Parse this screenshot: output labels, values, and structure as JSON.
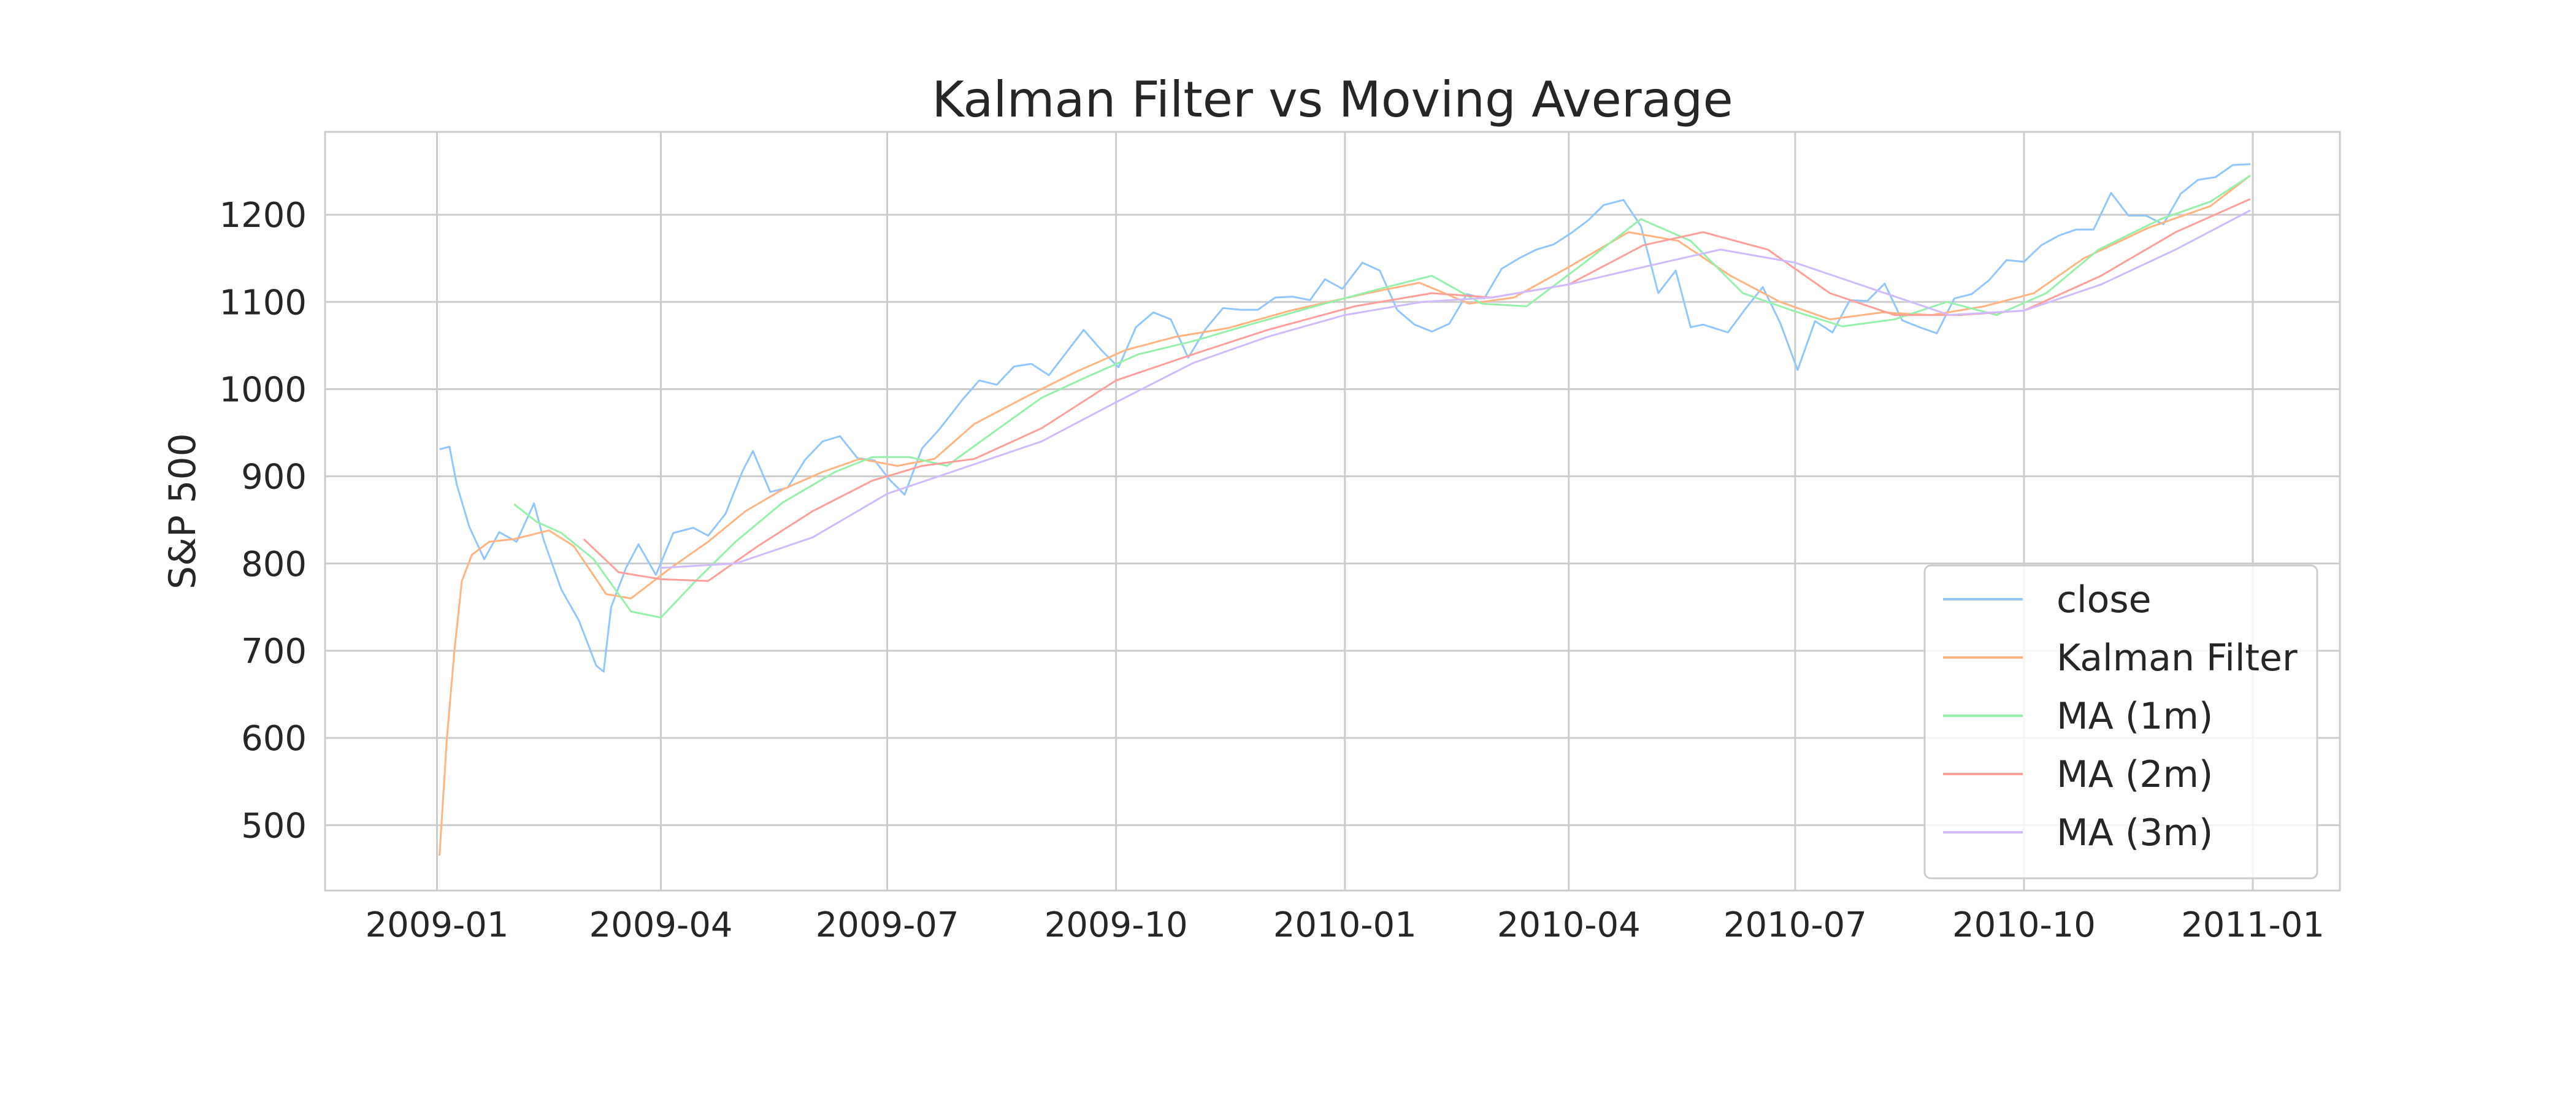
{
  "chart_data": {
    "type": "line",
    "title": "Kalman Filter vs Moving Average",
    "xlabel": "",
    "ylabel": "S&P 500",
    "x_ticks": [
      "2009-01",
      "2009-04",
      "2009-07",
      "2009-10",
      "2010-01",
      "2010-04",
      "2010-07",
      "2010-10",
      "2011-01"
    ],
    "x_tick_dates": [
      "2009-01-01",
      "2009-04-01",
      "2009-07-01",
      "2009-10-01",
      "2010-01-01",
      "2010-04-01",
      "2010-07-01",
      "2010-10-01",
      "2011-01-01"
    ],
    "xlim": [
      "2008-11-17",
      "2011-02-05"
    ],
    "y_ticks": [
      500,
      600,
      700,
      800,
      900,
      1000,
      1100,
      1200
    ],
    "ylim": [
      425,
      1295
    ],
    "grid": true,
    "legend_position": "lower-right",
    "series": [
      {
        "name": "close",
        "color": "#92c6ff",
        "points": [
          [
            "2009-01-02",
            931
          ],
          [
            "2009-01-06",
            934
          ],
          [
            "2009-01-09",
            890
          ],
          [
            "2009-01-14",
            842
          ],
          [
            "2009-01-20",
            805
          ],
          [
            "2009-01-26",
            836
          ],
          [
            "2009-02-02",
            825
          ],
          [
            "2009-02-09",
            869
          ],
          [
            "2009-02-13",
            826
          ],
          [
            "2009-02-20",
            770
          ],
          [
            "2009-02-27",
            735
          ],
          [
            "2009-03-06",
            683
          ],
          [
            "2009-03-09",
            676
          ],
          [
            "2009-03-12",
            750
          ],
          [
            "2009-03-18",
            795
          ],
          [
            "2009-03-23",
            822
          ],
          [
            "2009-03-30",
            787
          ],
          [
            "2009-04-06",
            835
          ],
          [
            "2009-04-14",
            841
          ],
          [
            "2009-04-20",
            832
          ],
          [
            "2009-04-27",
            857
          ],
          [
            "2009-05-04",
            907
          ],
          [
            "2009-05-08",
            929
          ],
          [
            "2009-05-15",
            882
          ],
          [
            "2009-05-22",
            887
          ],
          [
            "2009-05-29",
            919
          ],
          [
            "2009-06-05",
            940
          ],
          [
            "2009-06-12",
            946
          ],
          [
            "2009-06-19",
            921
          ],
          [
            "2009-06-26",
            918
          ],
          [
            "2009-07-02",
            896
          ],
          [
            "2009-07-08",
            879
          ],
          [
            "2009-07-15",
            932
          ],
          [
            "2009-07-22",
            954
          ],
          [
            "2009-07-31",
            987
          ],
          [
            "2009-08-07",
            1010
          ],
          [
            "2009-08-14",
            1005
          ],
          [
            "2009-08-21",
            1026
          ],
          [
            "2009-08-28",
            1029
          ],
          [
            "2009-09-04",
            1016
          ],
          [
            "2009-09-11",
            1042
          ],
          [
            "2009-09-18",
            1068
          ],
          [
            "2009-09-25",
            1045
          ],
          [
            "2009-10-02",
            1025
          ],
          [
            "2009-10-09",
            1071
          ],
          [
            "2009-10-16",
            1088
          ],
          [
            "2009-10-23",
            1080
          ],
          [
            "2009-10-30",
            1036
          ],
          [
            "2009-11-06",
            1069
          ],
          [
            "2009-11-13",
            1093
          ],
          [
            "2009-11-20",
            1091
          ],
          [
            "2009-11-27",
            1091
          ],
          [
            "2009-12-04",
            1105
          ],
          [
            "2009-12-11",
            1106
          ],
          [
            "2009-12-18",
            1102
          ],
          [
            "2009-12-24",
            1126
          ],
          [
            "2009-12-31",
            1115
          ],
          [
            "2010-01-08",
            1145
          ],
          [
            "2010-01-15",
            1136
          ],
          [
            "2010-01-22",
            1091
          ],
          [
            "2010-01-29",
            1074
          ],
          [
            "2010-02-05",
            1066
          ],
          [
            "2010-02-12",
            1075
          ],
          [
            "2010-02-19",
            1109
          ],
          [
            "2010-02-26",
            1104
          ],
          [
            "2010-03-05",
            1138
          ],
          [
            "2010-03-12",
            1150
          ],
          [
            "2010-03-19",
            1160
          ],
          [
            "2010-03-26",
            1166
          ],
          [
            "2010-04-02",
            1179
          ],
          [
            "2010-04-09",
            1194
          ],
          [
            "2010-04-15",
            1211
          ],
          [
            "2010-04-23",
            1217
          ],
          [
            "2010-04-30",
            1187
          ],
          [
            "2010-05-07",
            1110
          ],
          [
            "2010-05-14",
            1136
          ],
          [
            "2010-05-20",
            1071
          ],
          [
            "2010-05-25",
            1074
          ],
          [
            "2010-06-04",
            1065
          ],
          [
            "2010-06-11",
            1092
          ],
          [
            "2010-06-18",
            1117
          ],
          [
            "2010-06-25",
            1076
          ],
          [
            "2010-07-02",
            1022
          ],
          [
            "2010-07-09",
            1078
          ],
          [
            "2010-07-16",
            1065
          ],
          [
            "2010-07-23",
            1102
          ],
          [
            "2010-07-30",
            1101
          ],
          [
            "2010-08-06",
            1121
          ],
          [
            "2010-08-13",
            1079
          ],
          [
            "2010-08-20",
            1071
          ],
          [
            "2010-08-27",
            1064
          ],
          [
            "2010-09-03",
            1104
          ],
          [
            "2010-09-10",
            1109
          ],
          [
            "2010-09-17",
            1125
          ],
          [
            "2010-09-24",
            1148
          ],
          [
            "2010-10-01",
            1146
          ],
          [
            "2010-10-08",
            1165
          ],
          [
            "2010-10-15",
            1176
          ],
          [
            "2010-10-22",
            1183
          ],
          [
            "2010-10-29",
            1183
          ],
          [
            "2010-11-05",
            1225
          ],
          [
            "2010-11-12",
            1199
          ],
          [
            "2010-11-19",
            1199
          ],
          [
            "2010-11-26",
            1189
          ],
          [
            "2010-12-03",
            1224
          ],
          [
            "2010-12-10",
            1240
          ],
          [
            "2010-12-17",
            1243
          ],
          [
            "2010-12-24",
            1257
          ],
          [
            "2010-12-31",
            1258
          ]
        ]
      },
      {
        "name": "Kalman Filter",
        "color": "#ffb482",
        "points": [
          [
            "2009-01-02",
            465
          ],
          [
            "2009-01-05",
            600
          ],
          [
            "2009-01-08",
            700
          ],
          [
            "2009-01-11",
            780
          ],
          [
            "2009-01-15",
            810
          ],
          [
            "2009-01-22",
            825
          ],
          [
            "2009-02-01",
            828
          ],
          [
            "2009-02-15",
            838
          ],
          [
            "2009-02-25",
            820
          ],
          [
            "2009-03-10",
            765
          ],
          [
            "2009-03-20",
            760
          ],
          [
            "2009-04-05",
            795
          ],
          [
            "2009-04-20",
            825
          ],
          [
            "2009-05-05",
            860
          ],
          [
            "2009-05-20",
            885
          ],
          [
            "2009-06-05",
            905
          ],
          [
            "2009-06-20",
            920
          ],
          [
            "2009-07-05",
            912
          ],
          [
            "2009-07-20",
            920
          ],
          [
            "2009-08-05",
            960
          ],
          [
            "2009-08-25",
            990
          ],
          [
            "2009-09-15",
            1020
          ],
          [
            "2009-10-05",
            1045
          ],
          [
            "2009-10-25",
            1060
          ],
          [
            "2009-11-15",
            1070
          ],
          [
            "2009-12-10",
            1090
          ],
          [
            "2010-01-10",
            1110
          ],
          [
            "2010-01-31",
            1122
          ],
          [
            "2010-02-20",
            1098
          ],
          [
            "2010-03-10",
            1105
          ],
          [
            "2010-04-01",
            1140
          ],
          [
            "2010-04-25",
            1180
          ],
          [
            "2010-05-15",
            1170
          ],
          [
            "2010-06-05",
            1130
          ],
          [
            "2010-06-25",
            1100
          ],
          [
            "2010-07-15",
            1080
          ],
          [
            "2010-08-05",
            1088
          ],
          [
            "2010-08-25",
            1085
          ],
          [
            "2010-09-15",
            1095
          ],
          [
            "2010-10-05",
            1110
          ],
          [
            "2010-10-25",
            1150
          ],
          [
            "2010-11-20",
            1185
          ],
          [
            "2010-12-15",
            1210
          ],
          [
            "2010-12-31",
            1245
          ]
        ]
      },
      {
        "name": "MA (1m)",
        "color": "#97f0aa",
        "points": [
          [
            "2009-02-01",
            868
          ],
          [
            "2009-02-10",
            848
          ],
          [
            "2009-02-20",
            835
          ],
          [
            "2009-03-05",
            805
          ],
          [
            "2009-03-20",
            745
          ],
          [
            "2009-04-01",
            738
          ],
          [
            "2009-04-15",
            780
          ],
          [
            "2009-05-01",
            825
          ],
          [
            "2009-05-20",
            870
          ],
          [
            "2009-06-10",
            905
          ],
          [
            "2009-06-25",
            922
          ],
          [
            "2009-07-10",
            922
          ],
          [
            "2009-07-25",
            912
          ],
          [
            "2009-08-10",
            945
          ],
          [
            "2009-09-01",
            990
          ],
          [
            "2009-09-20",
            1015
          ],
          [
            "2009-10-10",
            1040
          ],
          [
            "2009-11-01",
            1055
          ],
          [
            "2009-11-25",
            1075
          ],
          [
            "2009-12-20",
            1095
          ],
          [
            "2010-01-15",
            1115
          ],
          [
            "2010-02-05",
            1130
          ],
          [
            "2010-02-25",
            1098
          ],
          [
            "2010-03-15",
            1095
          ],
          [
            "2010-04-05",
            1140
          ],
          [
            "2010-04-30",
            1195
          ],
          [
            "2010-05-20",
            1170
          ],
          [
            "2010-06-10",
            1110
          ],
          [
            "2010-06-30",
            1090
          ],
          [
            "2010-07-20",
            1072
          ],
          [
            "2010-08-10",
            1080
          ],
          [
            "2010-08-31",
            1100
          ],
          [
            "2010-09-20",
            1085
          ],
          [
            "2010-10-10",
            1110
          ],
          [
            "2010-10-31",
            1160
          ],
          [
            "2010-11-25",
            1195
          ],
          [
            "2010-12-15",
            1215
          ],
          [
            "2010-12-31",
            1245
          ]
        ]
      },
      {
        "name": "MA (2m)",
        "color": "#ff9f9a",
        "points": [
          [
            "2009-03-01",
            828
          ],
          [
            "2009-03-15",
            790
          ],
          [
            "2009-04-01",
            782
          ],
          [
            "2009-04-20",
            780
          ],
          [
            "2009-05-10",
            820
          ],
          [
            "2009-06-01",
            860
          ],
          [
            "2009-06-25",
            895
          ],
          [
            "2009-07-15",
            912
          ],
          [
            "2009-08-05",
            920
          ],
          [
            "2009-09-01",
            955
          ],
          [
            "2009-10-01",
            1010
          ],
          [
            "2009-11-01",
            1040
          ],
          [
            "2009-12-01",
            1068
          ],
          [
            "2010-01-05",
            1095
          ],
          [
            "2010-02-05",
            1110
          ],
          [
            "2010-03-01",
            1105
          ],
          [
            "2010-04-01",
            1120
          ],
          [
            "2010-05-01",
            1165
          ],
          [
            "2010-05-25",
            1180
          ],
          [
            "2010-06-20",
            1160
          ],
          [
            "2010-07-15",
            1110
          ],
          [
            "2010-08-10",
            1085
          ],
          [
            "2010-09-05",
            1085
          ],
          [
            "2010-10-01",
            1090
          ],
          [
            "2010-11-01",
            1130
          ],
          [
            "2010-12-01",
            1180
          ],
          [
            "2010-12-31",
            1218
          ]
        ]
      },
      {
        "name": "MA (3m)",
        "color": "#d0bbff",
        "points": [
          [
            "2009-04-01",
            795
          ],
          [
            "2009-05-01",
            800
          ],
          [
            "2009-06-01",
            830
          ],
          [
            "2009-07-01",
            880
          ],
          [
            "2009-08-01",
            910
          ],
          [
            "2009-09-01",
            940
          ],
          [
            "2009-10-01",
            985
          ],
          [
            "2009-11-01",
            1030
          ],
          [
            "2009-12-01",
            1060
          ],
          [
            "2010-01-01",
            1085
          ],
          [
            "2010-02-01",
            1100
          ],
          [
            "2010-03-01",
            1105
          ],
          [
            "2010-04-01",
            1120
          ],
          [
            "2010-05-01",
            1140
          ],
          [
            "2010-06-01",
            1160
          ],
          [
            "2010-07-01",
            1145
          ],
          [
            "2010-08-01",
            1115
          ],
          [
            "2010-09-01",
            1085
          ],
          [
            "2010-10-01",
            1090
          ],
          [
            "2010-11-01",
            1120
          ],
          [
            "2010-12-01",
            1160
          ],
          [
            "2010-12-31",
            1205
          ]
        ]
      }
    ]
  }
}
